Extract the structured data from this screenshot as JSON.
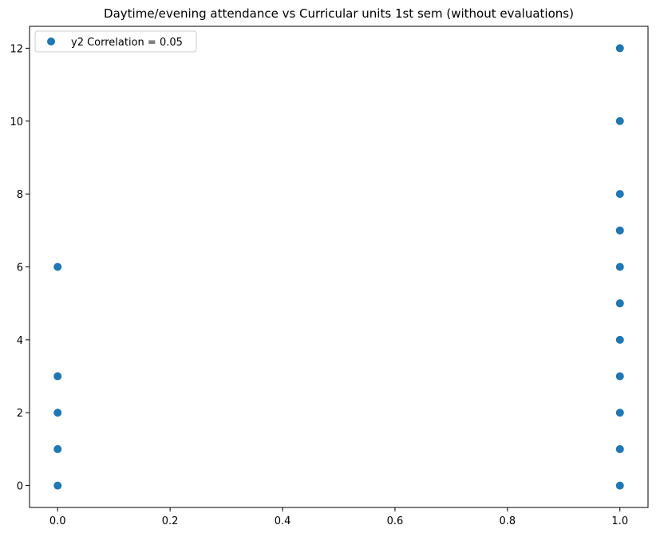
{
  "chart_data": {
    "type": "scatter",
    "title": "Daytime/evening attendance\t vs Curricular units 1st sem (without evaluations)",
    "xlabel": "",
    "ylabel": "",
    "xlim": [
      -0.05,
      1.05
    ],
    "ylim": [
      -0.6,
      12.6
    ],
    "x_ticks": [
      0.0,
      0.2,
      0.4,
      0.6,
      0.8,
      1.0
    ],
    "x_tick_labels": [
      "0.0",
      "0.2",
      "0.4",
      "0.6",
      "0.8",
      "1.0"
    ],
    "y_ticks": [
      0,
      2,
      4,
      6,
      8,
      10,
      12
    ],
    "y_tick_labels": [
      "0",
      "2",
      "4",
      "6",
      "8",
      "10",
      "12"
    ],
    "grid": false,
    "legend_position": "upper-left",
    "series": [
      {
        "name": "y2 Correlation = 0.05",
        "color": "#1f77b4",
        "points": [
          [
            0,
            0
          ],
          [
            0,
            1
          ],
          [
            0,
            2
          ],
          [
            0,
            3
          ],
          [
            0,
            6
          ],
          [
            1,
            0
          ],
          [
            1,
            1
          ],
          [
            1,
            2
          ],
          [
            1,
            3
          ],
          [
            1,
            4
          ],
          [
            1,
            5
          ],
          [
            1,
            6
          ],
          [
            1,
            7
          ],
          [
            1,
            8
          ],
          [
            1,
            10
          ],
          [
            1,
            12
          ]
        ]
      }
    ]
  }
}
